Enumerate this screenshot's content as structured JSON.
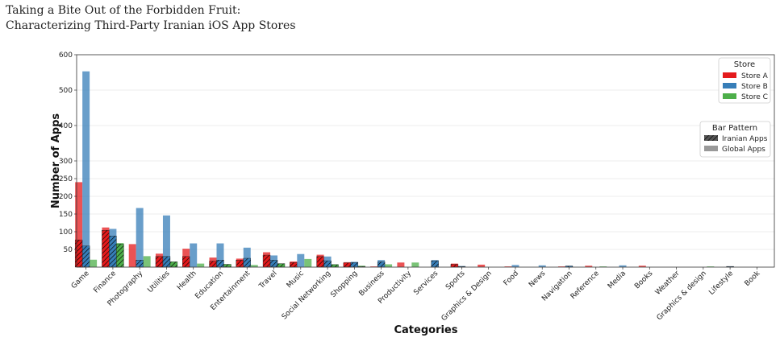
{
  "paper": {
    "title_line1": "Taking a Bite Out of the Forbidden Fruit:",
    "title_line2": "Characterizing Third-Party Iranian iOS App Stores"
  },
  "chart_data": {
    "type": "bar",
    "xlabel": "Categories",
    "ylabel": "Number of Apps",
    "ylim": [
      0,
      600
    ],
    "yticks": [
      50,
      100,
      150,
      200,
      250,
      300,
      400,
      500,
      600
    ],
    "grid": true,
    "categories": [
      "Game",
      "Finance",
      "Photography",
      "Utilities",
      "Health",
      "Education",
      "Entertainment",
      "Travel",
      "Music",
      "Social Networking",
      "Shopping",
      "Business",
      "Productivity",
      "Services",
      "Sports",
      "Graphics & Design",
      "Food",
      "News",
      "Navigation",
      "Reference",
      "Media",
      "Books",
      "Weather",
      "Graphics & design",
      "Lifestyle",
      "Book"
    ],
    "series": [
      {
        "name": "Store A",
        "color": "#e41a1c",
        "total": [
          240,
          112,
          65,
          38,
          52,
          27,
          24,
          42,
          16,
          35,
          14,
          2,
          13,
          0,
          10,
          7,
          2,
          0,
          2,
          4,
          0,
          4,
          0,
          0,
          0,
          0
        ],
        "iranian": [
          77,
          104,
          0,
          30,
          30,
          17,
          20,
          34,
          13,
          30,
          12,
          0,
          0,
          0,
          8,
          0,
          0,
          0,
          0,
          0,
          0,
          0,
          0,
          0,
          0,
          0
        ]
      },
      {
        "name": "Store B",
        "color": "#377eb8",
        "total": [
          553,
          108,
          167,
          146,
          67,
          67,
          55,
          33,
          37,
          30,
          15,
          20,
          0,
          20,
          3,
          0,
          6,
          5,
          4,
          0,
          5,
          0,
          0,
          0,
          2,
          0
        ],
        "iranian": [
          60,
          88,
          20,
          30,
          0,
          20,
          25,
          20,
          0,
          18,
          13,
          15,
          0,
          18,
          2,
          0,
          0,
          0,
          3,
          0,
          0,
          0,
          0,
          0,
          2,
          0
        ]
      },
      {
        "name": "Store C",
        "color": "#4daf4a",
        "total": [
          21,
          68,
          31,
          15,
          10,
          8,
          6,
          10,
          23,
          8,
          4,
          8,
          13,
          0,
          0,
          0,
          0,
          0,
          0,
          2,
          0,
          0,
          0,
          2,
          0,
          0
        ],
        "iranian": [
          0,
          65,
          0,
          15,
          0,
          8,
          0,
          10,
          0,
          7,
          2,
          0,
          0,
          0,
          0,
          0,
          0,
          0,
          0,
          0,
          0,
          0,
          0,
          0,
          0,
          0
        ]
      }
    ],
    "legend": {
      "title": "Store",
      "position": "top-right",
      "entries": [
        "Store A",
        "Store B",
        "Store C"
      ]
    },
    "pattern_legend": {
      "title": "Bar Pattern",
      "position": "right",
      "entries": [
        {
          "label": "Iranian Apps",
          "color": "#555555"
        },
        {
          "label": "Global Apps",
          "color": "#999999"
        }
      ]
    }
  }
}
